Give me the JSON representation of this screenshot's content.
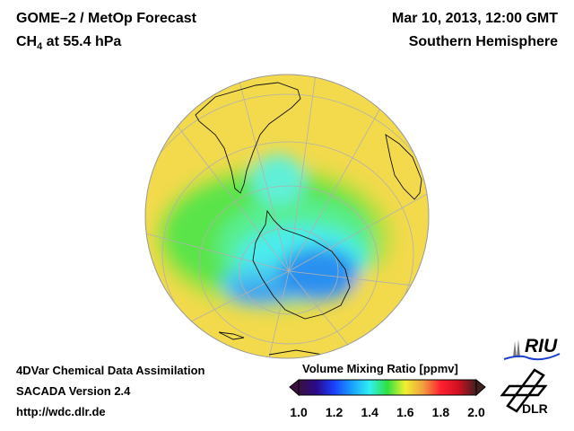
{
  "header": {
    "title": "GOME–2 / MetOp Forecast",
    "species": "CH",
    "species_sub": "4",
    "species_level": " at 55.4 hPa",
    "datetime": "Mar 10, 2013, 12:00 GMT",
    "region": "Southern Hemisphere"
  },
  "footer": {
    "line1": "4DVar Chemical Data Assimilation",
    "line2": "SACADA Version 2.4",
    "url": "http://wdc.dlr.de"
  },
  "colorbar": {
    "title": "Volume Mixing Ratio [ppmv]",
    "min": 1.0,
    "max": 2.0,
    "ticks": [
      "1.0",
      "1.2",
      "1.4",
      "1.6",
      "1.8",
      "2.0"
    ],
    "colors": [
      "#3a1040",
      "#2a0a8a",
      "#1a40ff",
      "#1aa0ff",
      "#30f0f0",
      "#30e040",
      "#f0f030",
      "#f0a040",
      "#ff2030",
      "#d01020",
      "#402020"
    ]
  },
  "logos": {
    "riu": "RIU",
    "dlr": "DLR"
  }
}
